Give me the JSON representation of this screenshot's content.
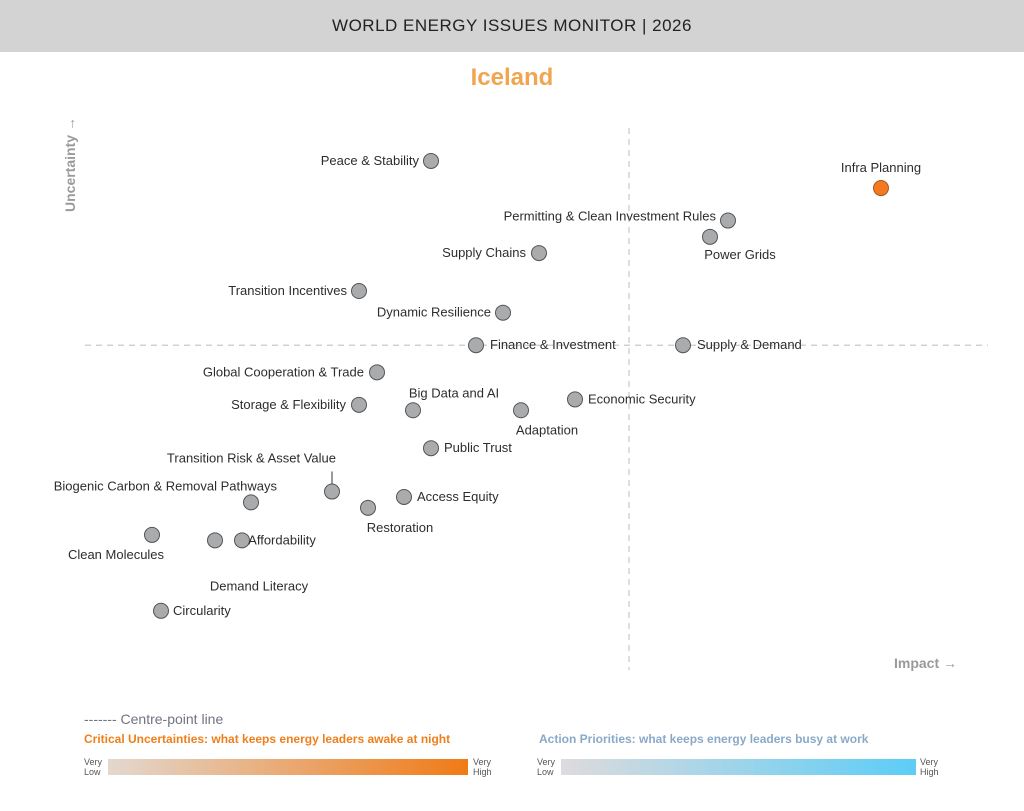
{
  "header": {
    "title": "WORLD ENERGY ISSUES MONITOR | 2026"
  },
  "country": "Iceland",
  "chart_data": {
    "type": "scatter",
    "title": "Iceland",
    "xlabel": "Impact →",
    "ylabel": "Uncertainty →",
    "xlim": [
      0,
      10
    ],
    "ylim": [
      0,
      10
    ],
    "centre": {
      "x": 6.1,
      "y": 5.9
    },
    "grid": false,
    "points": [
      {
        "label": "Peace & Stability",
        "x": 3.9,
        "y": 9.3,
        "highlight": false
      },
      {
        "label": "Infra Planning",
        "x": 8.9,
        "y": 8.8,
        "highlight": true
      },
      {
        "label": "Permitting & Clean Investment Rules",
        "x": 7.2,
        "y": 8.2,
        "highlight": false
      },
      {
        "label": "Power Grids",
        "x": 7.0,
        "y": 7.9,
        "highlight": false
      },
      {
        "label": "Supply Chains",
        "x": 5.1,
        "y": 7.6,
        "highlight": false
      },
      {
        "label": "Transition Incentives",
        "x": 3.1,
        "y": 6.9,
        "highlight": false
      },
      {
        "label": "Dynamic Resilience",
        "x": 4.7,
        "y": 6.5,
        "highlight": false
      },
      {
        "label": "Finance & Investment",
        "x": 4.4,
        "y": 5.9,
        "highlight": false
      },
      {
        "label": "Supply & Demand",
        "x": 6.7,
        "y": 5.9,
        "highlight": false
      },
      {
        "label": "Global Cooperation & Trade",
        "x": 3.3,
        "y": 5.4,
        "highlight": false
      },
      {
        "label": "Economic Security",
        "x": 5.5,
        "y": 4.9,
        "highlight": false
      },
      {
        "label": "Storage & Flexibility",
        "x": 3.1,
        "y": 4.8,
        "highlight": false
      },
      {
        "label": "Big Data and AI",
        "x": 3.7,
        "y": 4.7,
        "highlight": false
      },
      {
        "label": "Adaptation",
        "x": 4.9,
        "y": 4.7,
        "highlight": false
      },
      {
        "label": "Public Trust",
        "x": 3.9,
        "y": 4.0,
        "highlight": false
      },
      {
        "label": "Transition Risk & Asset Value",
        "x": 2.8,
        "y": 3.2,
        "highlight": false
      },
      {
        "label": "Access Equity",
        "x": 3.6,
        "y": 3.1,
        "highlight": false
      },
      {
        "label": "Biogenic Carbon & Removal Pathways",
        "x": 1.9,
        "y": 3.0,
        "highlight": false
      },
      {
        "label": "Restoration",
        "x": 3.2,
        "y": 2.9,
        "highlight": false
      },
      {
        "label": "Clean Molecules",
        "x": 0.8,
        "y": 2.4,
        "highlight": false
      },
      {
        "label": "Demand Literacy",
        "x": 1.5,
        "y": 2.3,
        "highlight": false
      },
      {
        "label": "Affordability",
        "x": 1.8,
        "y": 2.3,
        "highlight": false
      },
      {
        "label": "Circularity",
        "x": 0.9,
        "y": 1.0,
        "highlight": false
      }
    ]
  },
  "legend": {
    "centre_line": "------- Centre-point line",
    "critical": "Critical Uncertainties: what keeps energy leaders awake at night",
    "action": "Action Priorities: what keeps energy leaders busy at work",
    "very_low": "Very Low",
    "very_high": "Very High"
  },
  "colors": {
    "point": "#a9abad",
    "highlight": "#f47a20",
    "country": "#f0a550",
    "critical": "#ef7f1a",
    "action": "#8aa9c9"
  }
}
